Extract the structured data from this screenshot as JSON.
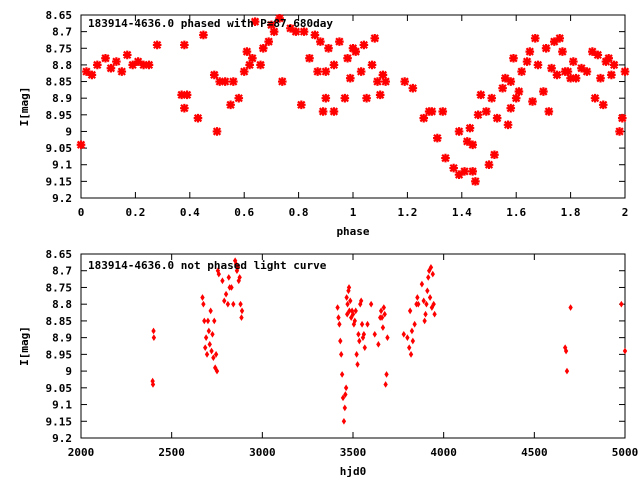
{
  "chart_data": [
    {
      "type": "scatter",
      "title": "183914-4636.0 phased with P=87.680day",
      "xlabel": "phase",
      "ylabel": "I[mag]",
      "xlim": [
        0,
        2
      ],
      "ylim": [
        9.2,
        8.65
      ],
      "y_inverted": true,
      "grid": false,
      "legend": "none",
      "color": "#ff0000",
      "marker": "star",
      "x_ticks": [
        "0",
        "0.2",
        "0.4",
        "0.6",
        "0.8",
        "1",
        "1.2",
        "1.4",
        "1.6",
        "1.8",
        "2"
      ],
      "y_ticks": [
        "8.65",
        "8.7",
        "8.75",
        "8.8",
        "8.85",
        "8.9",
        "8.95",
        "9",
        "9.05",
        "9.1",
        "9.15",
        "9.2"
      ],
      "series": [
        {
          "points": [
            [
              0.0,
              9.04
            ],
            [
              0.02,
              8.82
            ],
            [
              0.04,
              8.83
            ],
            [
              0.06,
              8.8
            ],
            [
              0.09,
              8.78
            ],
            [
              0.11,
              8.81
            ],
            [
              0.13,
              8.79
            ],
            [
              0.15,
              8.82
            ],
            [
              0.17,
              8.77
            ],
            [
              0.19,
              8.8
            ],
            [
              0.21,
              8.79
            ],
            [
              0.23,
              8.8
            ],
            [
              0.25,
              8.8
            ],
            [
              0.28,
              8.74
            ],
            [
              0.37,
              8.89
            ],
            [
              0.38,
              8.93
            ],
            [
              0.39,
              8.89
            ],
            [
              0.38,
              8.74
            ],
            [
              0.43,
              8.96
            ],
            [
              0.45,
              8.71
            ],
            [
              0.49,
              8.83
            ],
            [
              0.5,
              9.0
            ],
            [
              0.51,
              8.85
            ],
            [
              0.53,
              8.85
            ],
            [
              0.55,
              8.92
            ],
            [
              0.56,
              8.85
            ],
            [
              0.58,
              8.9
            ],
            [
              0.6,
              8.82
            ],
            [
              0.61,
              8.76
            ],
            [
              0.62,
              8.8
            ],
            [
              0.63,
              8.78
            ],
            [
              0.64,
              8.67
            ],
            [
              0.66,
              8.8
            ],
            [
              0.67,
              8.75
            ],
            [
              0.69,
              8.73
            ],
            [
              0.7,
              8.68
            ],
            [
              0.71,
              8.7
            ],
            [
              0.73,
              8.66
            ],
            [
              0.74,
              8.85
            ],
            [
              0.77,
              8.69
            ],
            [
              0.79,
              8.7
            ],
            [
              0.81,
              8.92
            ],
            [
              0.82,
              8.7
            ],
            [
              0.84,
              8.78
            ],
            [
              0.86,
              8.71
            ],
            [
              0.87,
              8.82
            ],
            [
              0.88,
              8.73
            ],
            [
              0.89,
              8.94
            ],
            [
              0.9,
              8.82
            ],
            [
              0.9,
              8.9
            ],
            [
              0.91,
              8.75
            ],
            [
              0.93,
              8.94
            ],
            [
              0.93,
              8.8
            ],
            [
              0.95,
              8.73
            ],
            [
              0.97,
              8.9
            ],
            [
              0.98,
              8.78
            ],
            [
              0.99,
              8.84
            ],
            [
              1.0,
              8.75
            ],
            [
              1.01,
              8.76
            ],
            [
              1.03,
              8.82
            ],
            [
              1.04,
              8.74
            ],
            [
              1.05,
              8.9
            ],
            [
              1.07,
              8.8
            ],
            [
              1.08,
              8.72
            ],
            [
              1.09,
              8.85
            ],
            [
              1.1,
              8.89
            ],
            [
              1.11,
              8.83
            ],
            [
              1.12,
              8.85
            ],
            [
              1.19,
              8.85
            ],
            [
              1.22,
              8.87
            ],
            [
              1.26,
              8.96
            ],
            [
              1.28,
              8.94
            ],
            [
              1.29,
              8.94
            ],
            [
              1.31,
              9.02
            ],
            [
              1.33,
              8.94
            ],
            [
              1.34,
              9.08
            ],
            [
              1.37,
              9.11
            ],
            [
              1.39,
              9.13
            ],
            [
              1.39,
              9.0
            ],
            [
              1.41,
              9.12
            ],
            [
              1.42,
              9.03
            ],
            [
              1.43,
              8.99
            ],
            [
              1.44,
              9.04
            ],
            [
              1.44,
              9.12
            ],
            [
              1.45,
              9.15
            ],
            [
              1.46,
              8.95
            ],
            [
              1.47,
              8.89
            ],
            [
              1.49,
              8.94
            ],
            [
              1.5,
              9.1
            ],
            [
              1.51,
              8.9
            ],
            [
              1.52,
              9.07
            ],
            [
              1.53,
              8.96
            ],
            [
              1.55,
              8.87
            ],
            [
              1.56,
              8.84
            ],
            [
              1.57,
              8.98
            ],
            [
              1.58,
              8.93
            ],
            [
              1.58,
              8.85
            ],
            [
              1.59,
              8.78
            ],
            [
              1.6,
              8.9
            ],
            [
              1.61,
              8.88
            ],
            [
              1.62,
              8.82
            ],
            [
              1.64,
              8.79
            ],
            [
              1.65,
              8.76
            ],
            [
              1.66,
              8.91
            ],
            [
              1.67,
              8.72
            ],
            [
              1.68,
              8.8
            ],
            [
              1.7,
              8.88
            ],
            [
              1.71,
              8.75
            ],
            [
              1.72,
              8.94
            ],
            [
              1.73,
              8.81
            ],
            [
              1.74,
              8.73
            ],
            [
              1.75,
              8.83
            ],
            [
              1.76,
              8.72
            ],
            [
              1.77,
              8.76
            ],
            [
              1.78,
              8.82
            ],
            [
              1.79,
              8.82
            ],
            [
              1.8,
              8.84
            ],
            [
              1.81,
              8.79
            ],
            [
              1.82,
              8.84
            ],
            [
              1.84,
              8.81
            ],
            [
              1.86,
              8.82
            ],
            [
              1.88,
              8.76
            ],
            [
              1.89,
              8.9
            ],
            [
              1.9,
              8.77
            ],
            [
              1.91,
              8.84
            ],
            [
              1.92,
              8.92
            ],
            [
              1.93,
              8.79
            ],
            [
              1.94,
              8.78
            ],
            [
              1.95,
              8.83
            ],
            [
              1.96,
              8.8
            ],
            [
              1.98,
              9.0
            ],
            [
              1.99,
              8.96
            ],
            [
              2.0,
              8.82
            ]
          ]
        }
      ]
    },
    {
      "type": "scatter",
      "title": "183914-4636.0 not phased light curve",
      "xlabel": "hjd0",
      "ylabel": "I[mag]",
      "xlim": [
        2000,
        5000
      ],
      "ylim": [
        9.2,
        8.65
      ],
      "y_inverted": true,
      "grid": false,
      "legend": "none",
      "color": "#ff0000",
      "marker": "diamond",
      "x_ticks": [
        "2000",
        "2500",
        "3000",
        "3500",
        "4000",
        "4500",
        "5000"
      ],
      "y_ticks": [
        "8.65",
        "8.7",
        "8.75",
        "8.8",
        "8.85",
        "8.9",
        "8.95",
        "9",
        "9.05",
        "9.1",
        "9.15",
        "9.2"
      ],
      "series": [
        {
          "points": [
            [
              2395,
              9.03
            ],
            [
              2397,
              9.04
            ],
            [
              2400,
              8.88
            ],
            [
              2402,
              8.9
            ],
            [
              2670,
              8.78
            ],
            [
              2675,
              8.8
            ],
            [
              2680,
              8.85
            ],
            [
              2685,
              8.93
            ],
            [
              2690,
              8.9
            ],
            [
              2695,
              8.95
            ],
            [
              2700,
              8.85
            ],
            [
              2705,
              8.88
            ],
            [
              2710,
              8.92
            ],
            [
              2715,
              8.82
            ],
            [
              2720,
              8.94
            ],
            [
              2725,
              8.89
            ],
            [
              2730,
              8.96
            ],
            [
              2735,
              8.85
            ],
            [
              2740,
              8.99
            ],
            [
              2745,
              8.95
            ],
            [
              2750,
              9.0
            ],
            [
              2755,
              8.7
            ],
            [
              2760,
              8.71
            ],
            [
              2780,
              8.73
            ],
            [
              2790,
              8.79
            ],
            [
              2800,
              8.77
            ],
            [
              2810,
              8.8
            ],
            [
              2815,
              8.72
            ],
            [
              2820,
              8.75
            ],
            [
              2830,
              8.75
            ],
            [
              2840,
              8.8
            ],
            [
              2850,
              8.67
            ],
            [
              2855,
              8.68
            ],
            [
              2860,
              8.7
            ],
            [
              2865,
              8.69
            ],
            [
              2870,
              8.73
            ],
            [
              2875,
              8.72
            ],
            [
              2880,
              8.8
            ],
            [
              2885,
              8.84
            ],
            [
              2888,
              8.82
            ],
            [
              3415,
              8.81
            ],
            [
              3420,
              8.84
            ],
            [
              3425,
              8.86
            ],
            [
              3430,
              8.91
            ],
            [
              3435,
              8.95
            ],
            [
              3440,
              9.01
            ],
            [
              3445,
              9.08
            ],
            [
              3450,
              9.15
            ],
            [
              3455,
              9.11
            ],
            [
              3458,
              9.07
            ],
            [
              3462,
              9.05
            ],
            [
              3465,
              8.78
            ],
            [
              3468,
              8.83
            ],
            [
              3470,
              8.8
            ],
            [
              3475,
              8.76
            ],
            [
              3478,
              8.75
            ],
            [
              3480,
              8.82
            ],
            [
              3485,
              8.79
            ],
            [
              3490,
              8.84
            ],
            [
              3495,
              8.82
            ],
            [
              3500,
              8.83
            ],
            [
              3505,
              8.86
            ],
            [
              3510,
              8.85
            ],
            [
              3515,
              8.82
            ],
            [
              3520,
              8.95
            ],
            [
              3525,
              8.98
            ],
            [
              3530,
              8.89
            ],
            [
              3535,
              8.91
            ],
            [
              3540,
              8.8
            ],
            [
              3545,
              8.79
            ],
            [
              3550,
              8.86
            ],
            [
              3555,
              8.9
            ],
            [
              3560,
              8.89
            ],
            [
              3565,
              8.93
            ],
            [
              3580,
              8.86
            ],
            [
              3600,
              8.8
            ],
            [
              3620,
              8.89
            ],
            [
              3640,
              8.92
            ],
            [
              3650,
              8.84
            ],
            [
              3655,
              8.82
            ],
            [
              3660,
              8.84
            ],
            [
              3665,
              8.87
            ],
            [
              3670,
              8.81
            ],
            [
              3675,
              8.83
            ],
            [
              3680,
              9.04
            ],
            [
              3685,
              9.01
            ],
            [
              3690,
              8.9
            ],
            [
              3780,
              8.89
            ],
            [
              3800,
              8.9
            ],
            [
              3810,
              8.93
            ],
            [
              3815,
              8.82
            ],
            [
              3820,
              8.95
            ],
            [
              3825,
              8.88
            ],
            [
              3830,
              8.91
            ],
            [
              3840,
              8.86
            ],
            [
              3850,
              8.8
            ],
            [
              3855,
              8.78
            ],
            [
              3860,
              8.8
            ],
            [
              3880,
              8.74
            ],
            [
              3890,
              8.79
            ],
            [
              3895,
              8.85
            ],
            [
              3900,
              8.83
            ],
            [
              3905,
              8.8
            ],
            [
              3910,
              8.76
            ],
            [
              3915,
              8.72
            ],
            [
              3920,
              8.7
            ],
            [
              3925,
              8.78
            ],
            [
              3930,
              8.69
            ],
            [
              3935,
              8.81
            ],
            [
              3940,
              8.71
            ],
            [
              3945,
              8.8
            ],
            [
              3950,
              8.83
            ],
            [
              4670,
              8.93
            ],
            [
              4675,
              8.94
            ],
            [
              4680,
              9.0
            ],
            [
              4700,
              8.81
            ],
            [
              4980,
              8.8
            ],
            [
              5000,
              8.94
            ]
          ]
        }
      ]
    }
  ]
}
